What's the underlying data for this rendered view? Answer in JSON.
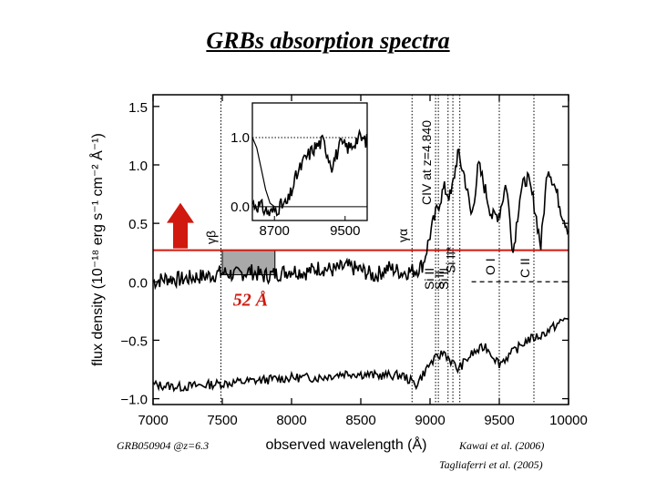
{
  "slide": {
    "title": "GRBs absorption spectra",
    "source_label": "GRB050904 @z=6.3",
    "references": [
      "Kawai et al. (2006)",
      "Tagliaferri et al. (2005)"
    ]
  },
  "colors": {
    "threshold_line": "#d0190f",
    "arrow": "#d0190f",
    "window": "#a9a9a9"
  },
  "chart_data": {
    "type": "line",
    "xlabel": "observed wavelength (Å)",
    "ylabel": "flux density (10⁻¹⁸ erg s⁻¹ cm⁻² Å⁻¹)",
    "xlim": [
      7000,
      10000
    ],
    "ylim": [
      -1.05,
      1.6
    ],
    "x_ticks": [
      "7000",
      "7500",
      "8000",
      "8500",
      "9000",
      "9500",
      "10000"
    ],
    "y_ticks": [
      "1.5",
      "1.0",
      "0.5",
      "0.0",
      "−0.5",
      "−1.0"
    ],
    "series": [
      {
        "role": "spectrum",
        "x": [
          7000,
          7100,
          7200,
          7300,
          7400,
          7500,
          7600,
          7700,
          7800,
          7900,
          8000,
          8100,
          8200,
          8300,
          8400,
          8500,
          8600,
          8700,
          8800,
          8900,
          8950,
          9000,
          9050,
          9100,
          9150,
          9200,
          9250,
          9300,
          9350,
          9400,
          9450,
          9500,
          9550,
          9600,
          9650,
          9700,
          9750,
          9800,
          9850,
          9900,
          9950,
          10000
        ],
        "y": [
          0.0,
          0.03,
          0.02,
          0.04,
          0.05,
          0.08,
          0.06,
          0.09,
          0.05,
          0.07,
          0.1,
          0.08,
          0.12,
          0.1,
          0.13,
          0.1,
          0.05,
          0.12,
          0.08,
          0.1,
          0.15,
          0.4,
          0.62,
          0.8,
          0.72,
          1.1,
          0.9,
          0.55,
          1.0,
          0.78,
          0.55,
          0.58,
          0.85,
          0.25,
          0.75,
          0.9,
          0.68,
          0.3,
          1.0,
          0.82,
          0.6,
          0.45
        ]
      },
      {
        "role": "error",
        "x": [
          7000,
          7200,
          7400,
          7600,
          7800,
          8000,
          8200,
          8400,
          8600,
          8800,
          8900,
          9000,
          9100,
          9200,
          9300,
          9400,
          9500,
          9600,
          9700,
          9800,
          9900,
          10000
        ],
        "y": [
          -0.88,
          -0.9,
          -0.88,
          -0.86,
          -0.84,
          -0.82,
          -0.82,
          -0.78,
          -0.8,
          -0.8,
          -0.88,
          -0.7,
          -0.6,
          -0.75,
          -0.62,
          -0.55,
          -0.7,
          -0.6,
          -0.5,
          -0.46,
          -0.38,
          -0.3
        ]
      }
    ],
    "reference_lines": {
      "threshold_y": 0.27,
      "zero_dashed_from_x": 9300
    },
    "window": {
      "label": "52 Å",
      "x": [
        7500,
        7880
      ],
      "y": [
        0.06,
        0.27
      ]
    },
    "line_markers": [
      {
        "x": 7490,
        "label": "γβ"
      },
      {
        "x": 8870,
        "label": "γα"
      },
      {
        "x": 9040,
        "label": "CIV at z=4.840"
      },
      {
        "x": 9060,
        "label": "Si II"
      },
      {
        "x": 9130,
        "label": "S II"
      },
      {
        "x": 9165,
        "label": "Si II"
      },
      {
        "x": 9215,
        "label": "Si II*"
      },
      {
        "x": 9500,
        "label": "O I"
      },
      {
        "x": 9750,
        "label": "C II"
      }
    ],
    "inset": {
      "xlim": [
        8450,
        9750
      ],
      "ylim": [
        -0.2,
        1.5
      ],
      "x_ticks": [
        "8700",
        "9500"
      ],
      "y_ticks": [
        "1.0",
        "0.0"
      ],
      "series": [
        {
          "role": "data",
          "x": [
            8450,
            8550,
            8650,
            8750,
            8850,
            8950,
            9050,
            9150,
            9250,
            9350,
            9450,
            9550,
            9650,
            9750
          ],
          "y": [
            0.05,
            0.0,
            -0.1,
            0.0,
            0.05,
            0.45,
            0.7,
            0.85,
            0.95,
            0.6,
            0.9,
            0.85,
            1.0,
            0.95
          ]
        },
        {
          "role": "model",
          "x": [
            8450,
            8500,
            8550,
            8600,
            8650,
            8700,
            8750
          ],
          "y": [
            1.0,
            0.85,
            0.55,
            0.25,
            0.05,
            0.0,
            0.0
          ]
        }
      ]
    },
    "arrow": "up"
  }
}
